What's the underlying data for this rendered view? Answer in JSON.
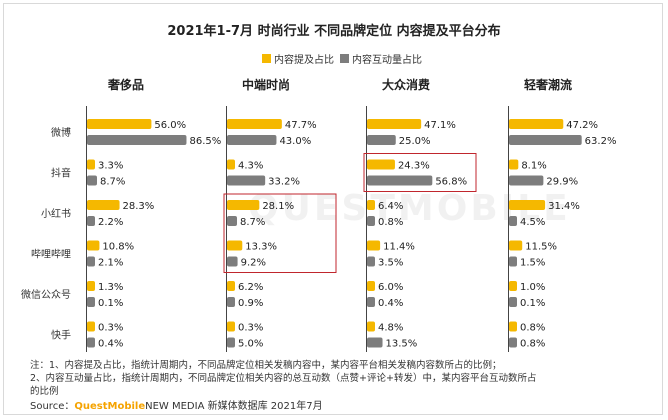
{
  "title": "2021年1-7月 时尚行业 不同品牌定位 内容提及平台分布",
  "colors": {
    "mention": "#f5b800",
    "interaction": "#7d7d7d",
    "highlight": "#c0262d"
  },
  "chart_data": {
    "type": "bar",
    "orientation": "horizontal",
    "legend": [
      "内容提及占比",
      "内容互动量占比"
    ],
    "legend_position": "top-center",
    "categories": [
      "微博",
      "抖音",
      "小红书",
      "哔哩哔哩",
      "微信公众号",
      "快手"
    ],
    "panels": [
      {
        "name": "奢侈品",
        "series": [
          {
            "name": "内容提及占比",
            "values": [
              56.0,
              3.3,
              28.3,
              10.8,
              1.3,
              0.3
            ],
            "labels": [
              "56.0%",
              "3.3%",
              "28.3%",
              "10.8%",
              "1.3%",
              "0.3%"
            ]
          },
          {
            "name": "内容互动量占比",
            "values": [
              86.5,
              8.7,
              2.2,
              2.1,
              0.1,
              0.4
            ],
            "labels": [
              "86.5%",
              "8.7%",
              "2.2%",
              "2.1%",
              "0.1%",
              "0.4%"
            ]
          }
        ]
      },
      {
        "name": "中端时尚",
        "series": [
          {
            "name": "内容提及占比",
            "values": [
              47.7,
              4.3,
              28.1,
              13.3,
              6.2,
              0.3
            ],
            "labels": [
              "47.7%",
              "4.3%",
              "28.1%",
              "13.3%",
              "6.2%",
              "0.3%"
            ]
          },
          {
            "name": "内容互动量占比",
            "values": [
              43.0,
              33.2,
              8.7,
              9.2,
              0.9,
              5.0
            ],
            "labels": [
              "43.0%",
              "33.2%",
              "8.7%",
              "9.2%",
              "0.9%",
              "5.0%"
            ]
          }
        ]
      },
      {
        "name": "大众消费",
        "series": [
          {
            "name": "内容提及占比",
            "values": [
              47.1,
              24.3,
              6.4,
              11.4,
              6.0,
              4.8
            ],
            "labels": [
              "47.1%",
              "24.3%",
              "6.4%",
              "11.4%",
              "6.0%",
              "4.8%"
            ]
          },
          {
            "name": "内容互动量占比",
            "values": [
              25.0,
              56.8,
              0.8,
              3.5,
              0.4,
              13.5
            ],
            "labels": [
              "25.0%",
              "56.8%",
              "0.8%",
              "3.5%",
              "0.4%",
              "13.5%"
            ]
          }
        ]
      },
      {
        "name": "轻奢潮流",
        "series": [
          {
            "name": "内容提及占比",
            "values": [
              47.2,
              8.1,
              31.4,
              11.5,
              1.0,
              0.8
            ],
            "labels": [
              "47.2%",
              "8.1%",
              "31.4%",
              "11.5%",
              "1.0%",
              "0.8%"
            ]
          },
          {
            "name": "内容互动量占比",
            "values": [
              63.2,
              29.9,
              4.5,
              1.5,
              0.1,
              0.8
            ],
            "labels": [
              "63.2%",
              "29.9%",
              "4.5%",
              "1.5%",
              "0.1%",
              "0.8%"
            ]
          }
        ]
      }
    ],
    "highlight_boxes": [
      {
        "panel": "中端时尚",
        "categories": [
          "小红书",
          "哔哩哔哩"
        ]
      },
      {
        "panel": "大众消费",
        "categories": [
          "抖音"
        ]
      }
    ]
  },
  "notes": {
    "line1": "注：1、内容提及占比，指统计周期内，不同品牌定位相关发稿内容中，某内容平台相关发稿内容数所占的比例；",
    "line2": "2、内容互动量占比，指统计周期内，不同品牌定位相关内容的总互动数（点赞+评论+转发）中，某内容平台互动数所占",
    "line3": "的比例",
    "source_prefix": "Source：",
    "source_brand": "QuestMobile",
    "source_suffix": "NEW MEDIA 新媒体数据库 2021年7月"
  },
  "watermark": "QUESTMOBILE"
}
